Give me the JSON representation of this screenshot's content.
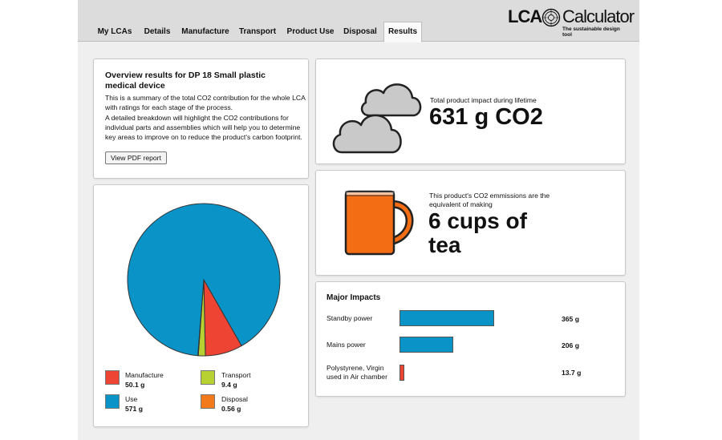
{
  "nav": {
    "tabs": [
      {
        "label": "My LCAs"
      },
      {
        "label": "Details"
      },
      {
        "label": "Manufacture"
      },
      {
        "label": "Transport"
      },
      {
        "label": "Product Use"
      },
      {
        "label": "Disposal"
      },
      {
        "label": "Results",
        "active": true
      }
    ]
  },
  "logo": {
    "primary": "LCA",
    "secondary": "Calculator",
    "tagline": "The sustainable design tool"
  },
  "overview": {
    "title": "Overview results for DP 18 Small plastic medical device",
    "paragraph1": "This is a summary of the total CO2 contribution for the whole LCA with ratings for each stage of the process.",
    "paragraph2": "A detailed breakdown will highlight the CO2 contributions for individual parts and assemblies which will help you to determine key areas to improve on to reduce the product's carbon footprint.",
    "button_label": "View PDF report"
  },
  "chart_data": {
    "type": "pie",
    "slices": [
      {
        "label": "Manufacture",
        "value": 50.1,
        "display": "50.1 g",
        "color": "#ee4433"
      },
      {
        "label": "Transport",
        "value": 9.4,
        "display": "9.4 g",
        "color": "#b7d133"
      },
      {
        "label": "Use",
        "value": 571,
        "display": "571 g",
        "color": "#0a93c6"
      },
      {
        "label": "Disposal",
        "value": 0.56,
        "display": "0.56 g",
        "color": "#f27a1a"
      }
    ]
  },
  "impact": {
    "label": "Total product impact during lifetime",
    "value": "631 g CO2"
  },
  "equivalent": {
    "label": "This product's CO2 emmissions are the equivalent of making",
    "line1": "6 cups of",
    "line2": "tea"
  },
  "major_impacts": {
    "title": "Major Impacts",
    "scale_max": 365,
    "bar_color": "#0a93c6",
    "small_bar_color": "#ee4433",
    "items": [
      {
        "label": "Standby power",
        "value": 365,
        "display": "365 g"
      },
      {
        "label": "Mains power",
        "value": 206,
        "display": "206 g"
      },
      {
        "label": "Polystyrene, Virgin used in Air chamber",
        "value": 13.7,
        "display": "13.7 g"
      }
    ]
  },
  "colors": {
    "accent_blue": "#0a93c6",
    "cloud_gray": "#c8c8c8",
    "mug_orange": "#f26d13"
  }
}
